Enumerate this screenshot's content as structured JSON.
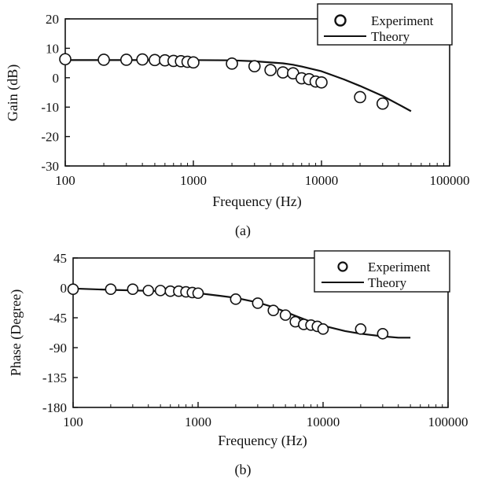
{
  "chart_data": [
    {
      "type": "scatter",
      "panel_label": "(a)",
      "xlabel": "Frequency (Hz)",
      "ylabel": "Gain (dB)",
      "x_scale": "log",
      "xlim": [
        100,
        100000
      ],
      "ylim": [
        -30,
        20
      ],
      "x_ticks": [
        "100",
        "1000",
        "10000",
        "100000"
      ],
      "y_ticks": [
        "-30",
        "-20",
        "-10",
        "0",
        "10",
        "20"
      ],
      "legend_position": "top-right",
      "legend": [
        "Experiment",
        "Theory"
      ],
      "series": [
        {
          "name": "Experiment",
          "kind": "markers",
          "x": [
            100,
            200,
            300,
            400,
            500,
            600,
            700,
            800,
            900,
            1000,
            2000,
            3000,
            4000,
            5000,
            6000,
            7000,
            8000,
            9000,
            10000,
            20000,
            30000
          ],
          "y": [
            6.3,
            6.1,
            6.1,
            6.2,
            6.0,
            5.9,
            5.7,
            5.6,
            5.4,
            5.2,
            4.8,
            3.9,
            2.6,
            1.8,
            1.5,
            -0.2,
            -0.5,
            -1.3,
            -1.6,
            -6.6,
            -8.8
          ]
        },
        {
          "name": "Theory",
          "kind": "line",
          "x": [
            100,
            200,
            500,
            1000,
            2000,
            3000,
            4000,
            5000,
            6000,
            7000,
            8000,
            10000,
            15000,
            20000,
            30000,
            40000,
            50000
          ],
          "y": [
            6.0,
            6.0,
            6.0,
            6.0,
            5.9,
            5.6,
            5.2,
            4.9,
            4.4,
            3.8,
            3.2,
            2.2,
            -0.6,
            -2.8,
            -6.2,
            -9.1,
            -11.4
          ]
        }
      ]
    },
    {
      "type": "scatter",
      "panel_label": "(b)",
      "xlabel": "Frequency (Hz)",
      "ylabel": "Phase (Degree)",
      "x_scale": "log",
      "xlim": [
        100,
        100000
      ],
      "ylim": [
        -180,
        45
      ],
      "x_ticks": [
        "100",
        "1000",
        "10000",
        "100000"
      ],
      "y_ticks": [
        "-180",
        "-135",
        "-90",
        "-45",
        "0",
        "45"
      ],
      "legend_position": "top-right",
      "legend": [
        "Experiment",
        "Theory"
      ],
      "series": [
        {
          "name": "Experiment",
          "kind": "markers",
          "x": [
            100,
            200,
            300,
            400,
            500,
            600,
            700,
            800,
            900,
            1000,
            2000,
            3000,
            4000,
            5000,
            6000,
            7000,
            8000,
            9000,
            10000,
            20000,
            30000
          ],
          "y": [
            -2,
            -2,
            -2,
            -4,
            -4,
            -5,
            -5,
            -6,
            -7,
            -8,
            -17,
            -23,
            -34,
            -41,
            -51,
            -55,
            -56,
            -58,
            -62,
            -62,
            -69
          ]
        },
        {
          "name": "Theory",
          "kind": "line",
          "x": [
            100,
            200,
            500,
            800,
            1000,
            1500,
            2000,
            3000,
            4000,
            5000,
            6000,
            7000,
            8000,
            10000,
            15000,
            20000,
            30000,
            40000,
            50000
          ],
          "y": [
            -1,
            -3,
            -5,
            -7,
            -8,
            -12,
            -15,
            -22,
            -29,
            -36,
            -42,
            -47,
            -51,
            -57,
            -65,
            -69,
            -73,
            -75,
            -75
          ]
        }
      ]
    }
  ]
}
